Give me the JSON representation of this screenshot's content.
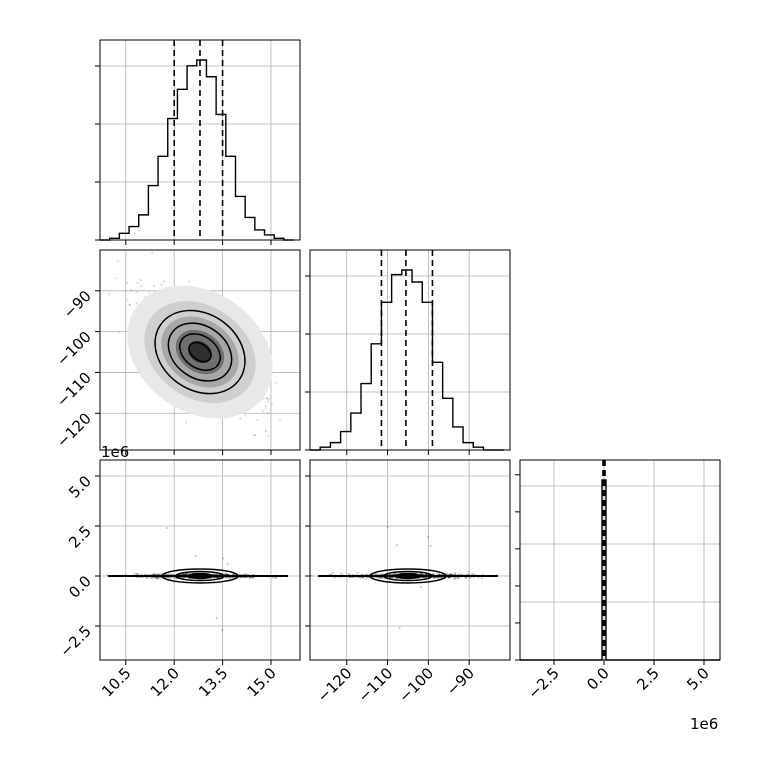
{
  "chart_data": {
    "type": "corner",
    "description_free": true,
    "parameters": 3,
    "offset_labels": [
      "1e6",
      "1e6"
    ],
    "x_ticks": {
      "p0": [
        "10.5",
        "12.0",
        "13.5",
        "15.0"
      ],
      "p1": [
        "−120",
        "−110",
        "−100",
        "−90"
      ],
      "p2": [
        "−2.5",
        "0.0",
        "2.5",
        "5.0"
      ]
    },
    "y_ticks": {
      "p1": [
        "−90",
        "−100",
        "−110",
        "−120"
      ],
      "p2": [
        "5.0",
        "2.5",
        "0.0",
        "−2.5"
      ]
    },
    "ranges": {
      "p0": [
        9.7,
        15.9
      ],
      "p1": [
        -129,
        -80
      ],
      "p2": [
        -4.2,
        5.8
      ]
    },
    "quantiles": {
      "p0": [
        12.0,
        12.8,
        13.5
      ],
      "p1": [
        -111.5,
        -105.5,
        -99.0
      ],
      "p2": [
        -0.05,
        0.0,
        0.05
      ]
    },
    "hist_p0": {
      "edges": [
        9.7,
        10.0,
        10.3,
        10.6,
        10.9,
        11.2,
        11.5,
        11.8,
        12.1,
        12.4,
        12.7,
        13.0,
        13.3,
        13.6,
        13.9,
        14.2,
        14.5,
        14.8,
        15.1,
        15.4,
        15.7
      ],
      "counts": [
        0,
        2,
        8,
        16,
        30,
        65,
        100,
        145,
        180,
        208,
        215,
        195,
        150,
        100,
        52,
        27,
        12,
        6,
        2,
        0
      ]
    },
    "hist_p1": {
      "edges": [
        -129,
        -126.5,
        -124,
        -121.5,
        -119,
        -116.5,
        -114,
        -111.5,
        -109,
        -106.5,
        -104,
        -101.5,
        -99,
        -96.5,
        -94,
        -91.5,
        -89,
        -86.5,
        -84,
        -81.5
      ],
      "counts": [
        0,
        3,
        8,
        20,
        40,
        72,
        115,
        160,
        190,
        195,
        182,
        160,
        95,
        56,
        25,
        8,
        3,
        0,
        0
      ]
    },
    "hist_p2": {
      "edges": [
        -0.3,
        -0.1,
        0.1,
        0.3
      ],
      "counts": [
        0,
        1,
        0
      ]
    },
    "scatter_p0_p1": {
      "center": [
        12.8,
        -105
      ],
      "spread": [
        0.75,
        6
      ],
      "correlation": -0.6
    },
    "scatter_p0_p2": {
      "center": [
        12.8,
        0.0
      ],
      "spread": [
        0.75,
        0.05
      ]
    },
    "scatter_p1_p2": {
      "center": [
        -105,
        0.0
      ],
      "spread": [
        6,
        0.05
      ]
    }
  }
}
